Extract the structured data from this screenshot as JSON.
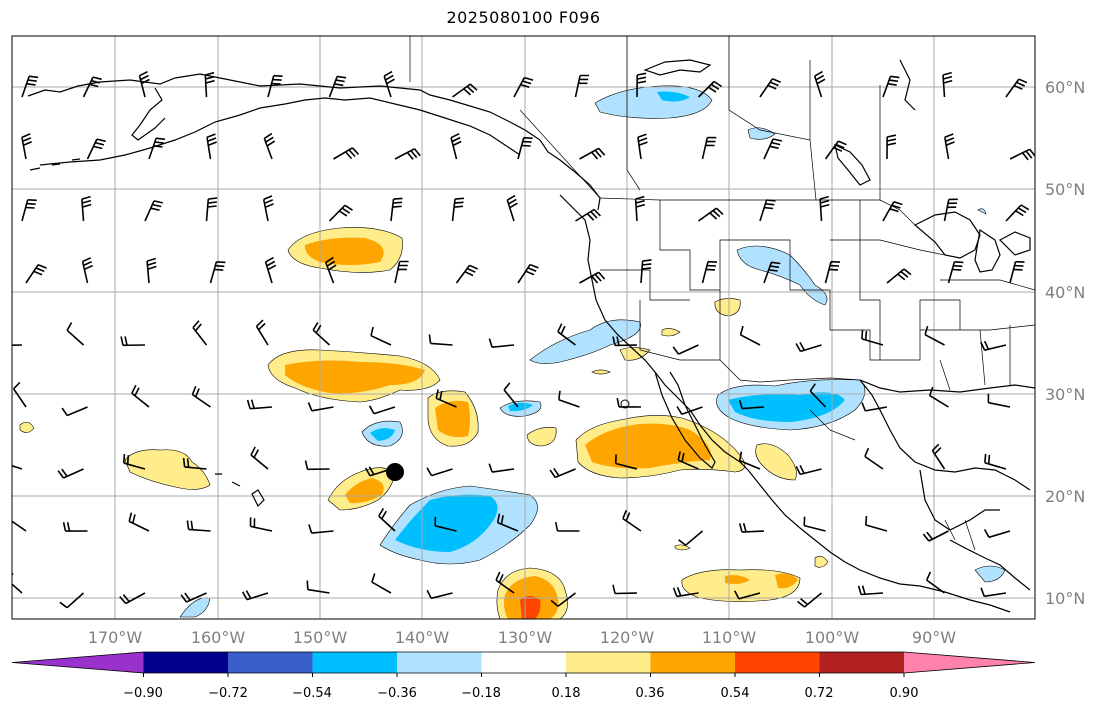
{
  "title": "2025080100 F096",
  "lon_labels": [
    "170°W",
    "160°W",
    "150°W",
    "140°W",
    "130°W",
    "120°W",
    "110°W",
    "100°W",
    "90°W"
  ],
  "lat_labels": [
    "60°N",
    "50°N",
    "40°N",
    "30°N",
    "20°N",
    "10°N"
  ],
  "colorbar": {
    "colors": [
      "#9932CC",
      "#00008B",
      "#3A5FCD",
      "#00BFFF",
      "#B0E2FF",
      "#FFFFFF",
      "#FFEC8B",
      "#FFA500",
      "#FF4500",
      "#B22222",
      "#FF82AB"
    ],
    "tick_labels": [
      "−0.90",
      "−0.72",
      "−0.54",
      "−0.36",
      "−0.18",
      "0.18",
      "0.36",
      "0.54",
      "0.72",
      "0.90"
    ]
  },
  "marker": {
    "lon": -142.8,
    "lat": 22.3
  },
  "colors": {
    "text": "#000000",
    "axis_labels": "#808080",
    "grid": "#A9A9A9",
    "coast": "#000000"
  }
}
